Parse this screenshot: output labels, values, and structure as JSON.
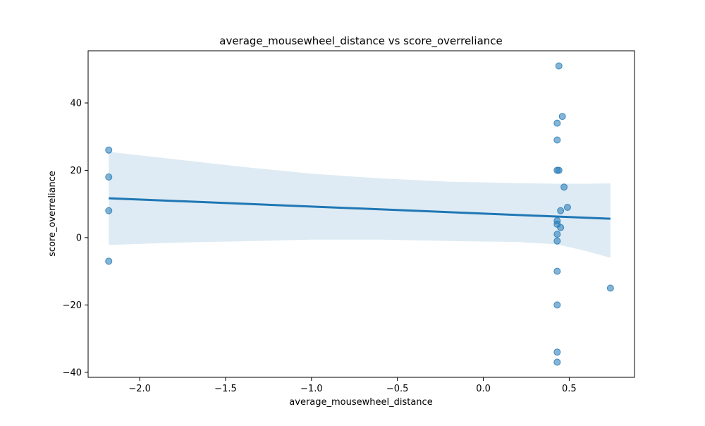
{
  "chart_data": {
    "type": "scatter",
    "title": "average_mousewheel_distance vs score_overreliance",
    "xlabel": "average_mousewheel_distance",
    "ylabel": "score_overreliance",
    "xlim": [
      -2.3,
      0.88
    ],
    "ylim": [
      -41.5,
      55.5
    ],
    "xticks": [
      -2.0,
      -1.5,
      -1.0,
      -0.5,
      0.0,
      0.5
    ],
    "xtick_labels": [
      "−2.0",
      "−1.5",
      "−1.0",
      "−0.5",
      "0.0",
      "0.5"
    ],
    "yticks": [
      -40,
      -20,
      0,
      20,
      40
    ],
    "ytick_labels": [
      "−40",
      "−20",
      "0",
      "20",
      "40"
    ],
    "grid": false,
    "colors": {
      "points": "#1f77b4",
      "regression_line": "#1f77b4",
      "confidence_band": "#1f77b4"
    },
    "points": [
      {
        "x": -2.18,
        "y": 26
      },
      {
        "x": -2.18,
        "y": 18
      },
      {
        "x": -2.18,
        "y": 8
      },
      {
        "x": -2.18,
        "y": -7
      },
      {
        "x": 0.44,
        "y": 51
      },
      {
        "x": 0.46,
        "y": 36
      },
      {
        "x": 0.43,
        "y": 34
      },
      {
        "x": 0.43,
        "y": 29
      },
      {
        "x": 0.43,
        "y": 20
      },
      {
        "x": 0.44,
        "y": 20
      },
      {
        "x": 0.47,
        "y": 15
      },
      {
        "x": 0.49,
        "y": 9
      },
      {
        "x": 0.45,
        "y": 8
      },
      {
        "x": 0.43,
        "y": 5
      },
      {
        "x": 0.43,
        "y": 4
      },
      {
        "x": 0.45,
        "y": 3
      },
      {
        "x": 0.43,
        "y": 1
      },
      {
        "x": 0.43,
        "y": -1
      },
      {
        "x": 0.43,
        "y": -10
      },
      {
        "x": 0.74,
        "y": -15
      },
      {
        "x": 0.43,
        "y": -20
      },
      {
        "x": 0.43,
        "y": -34
      },
      {
        "x": 0.43,
        "y": -37
      }
    ],
    "regression_line": {
      "x": [
        -2.18,
        0.74
      ],
      "y": [
        11.7,
        5.6
      ]
    },
    "confidence_band": {
      "x": [
        -2.18,
        -1.8,
        -1.4,
        -1.0,
        -0.6,
        -0.2,
        0.2,
        0.43,
        0.6,
        0.74
      ],
      "upper": [
        25.5,
        23.3,
        21.0,
        19.0,
        17.6,
        16.6,
        16.2,
        16.0,
        16.0,
        16.1
      ],
      "lower": [
        -2.2,
        -1.5,
        -1.1,
        -0.6,
        -0.6,
        -1.0,
        -1.3,
        -2.0,
        -4.0,
        -6.0
      ]
    }
  }
}
